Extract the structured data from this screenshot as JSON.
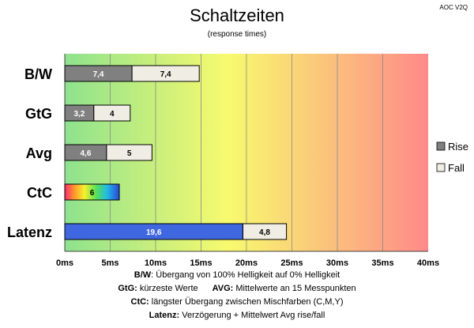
{
  "chart_data": {
    "type": "bar",
    "orientation": "horizontal",
    "stacked": true,
    "title": "Schaltzeiten",
    "subtitle": "(response times)",
    "corner_label": "AOC V2Q",
    "categories": [
      "B/W",
      "GtG",
      "Avg",
      "CtC",
      "Latenz"
    ],
    "series": [
      {
        "name": "Rise",
        "color": "#808080",
        "values": [
          7.4,
          3.2,
          4.6,
          null,
          null
        ],
        "labels": [
          "7,4",
          "3,2",
          "4,6",
          "",
          ""
        ]
      },
      {
        "name": "Fall",
        "color": "#f0ede4",
        "values": [
          7.4,
          4,
          5,
          null,
          4.8
        ],
        "labels": [
          "7,4",
          "4",
          "5",
          "",
          "4,8"
        ]
      }
    ],
    "special_bars": [
      {
        "category": "CtC",
        "start": 0,
        "value": 6,
        "label": "6",
        "fill": "rainbow"
      },
      {
        "category": "Latenz",
        "start": 0,
        "value": 19.6,
        "label": "19,6",
        "fill": "#3f67e0"
      }
    ],
    "x_ticks": [
      "0ms",
      "5ms",
      "10ms",
      "15ms",
      "20ms",
      "25ms",
      "30ms",
      "35ms",
      "40ms"
    ],
    "xlim": [
      0,
      40
    ],
    "x_step": 5,
    "grid": true,
    "background_gradient": [
      "#8ee28e",
      "#f8fa6e",
      "#fe8a8a"
    ],
    "legend": {
      "position": "right",
      "entries": [
        {
          "name": "Rise",
          "color": "#808080"
        },
        {
          "name": "Fall",
          "color": "#f0ede4"
        }
      ]
    }
  },
  "footer": {
    "line1": {
      "bold": "B/W",
      "text": ":  Übergang von 100% Helligkeit auf 0% Helligkeit"
    },
    "line2a": {
      "bold": "GtG:",
      "text": " kürzeste  Werte"
    },
    "line2b": {
      "bold": "AVG:",
      "text": " Mittelwerte  an 15 Messpunkten"
    },
    "line3": {
      "bold": "CtC:",
      "text": " längster Übergang  zwischen Mischfarben  (C,M,Y)"
    },
    "line4": {
      "bold": "Latenz:",
      "text": " Verzögerung  + Mittelwert Avg rise/fall"
    }
  }
}
